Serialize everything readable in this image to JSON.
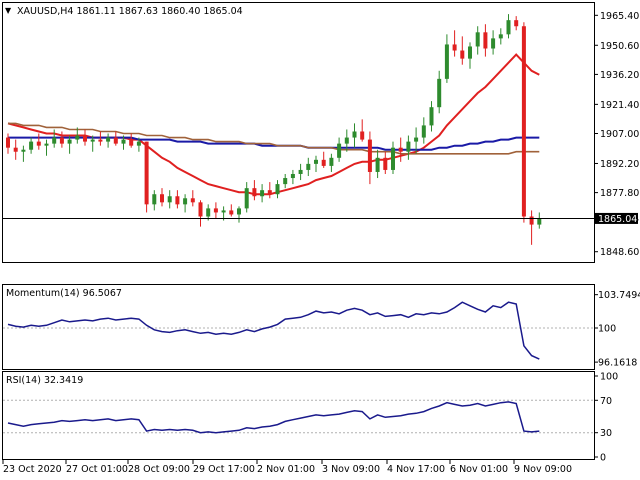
{
  "main_panel": {
    "title": "XAUUSD,H4  1861.11 1867.63 1860.40 1865.04",
    "price_ticks": [
      "1965.40",
      "1950.60",
      "1936.20",
      "1921.40",
      "1907.00",
      "1892.20",
      "1877.80",
      "1865.04",
      "1848.60"
    ],
    "last_price_label": "1865.04"
  },
  "momentum_panel": {
    "title": "Momentum(14) 96.5067",
    "ticks": [
      "103.7494",
      "100",
      "96.1618"
    ]
  },
  "rsi_panel": {
    "title": "RSI(14) 32.3419",
    "ticks": [
      "100",
      "70",
      "30",
      "0"
    ]
  },
  "time_axis": {
    "labels": [
      "23 Oct 2020",
      "27 Oct 01:00",
      "28 Oct 09:00",
      "29 Oct 17:00",
      "2 Nov 01:00",
      "3 Nov 09:00",
      "4 Nov 17:00",
      "6 Nov 01:00",
      "9 Nov 09:00"
    ]
  },
  "colors": {
    "bull_candle": "#2e8b2e",
    "bear_candle": "#e02020",
    "ma_fast": "#e02020",
    "ma_mid": "#1a1aa6",
    "ma_slow": "#a0623a",
    "indicator_line": "#1a1a8c",
    "grid": "#b0b0b0"
  },
  "chart_data": [
    {
      "type": "candlestick",
      "title": "XAUUSD,H4",
      "x_labels": [
        "23 Oct 2020",
        "27 Oct 01:00",
        "28 Oct 09:00",
        "29 Oct 17:00",
        "2 Nov 01:00",
        "3 Nov 09:00",
        "4 Nov 17:00",
        "6 Nov 01:00",
        "9 Nov 09:00"
      ],
      "ylim": [
        1845,
        1970
      ],
      "last_price": 1865.04,
      "candles": [
        [
          1905,
          1907,
          1897,
          1900
        ],
        [
          1900,
          1904,
          1894,
          1898
        ],
        [
          1898,
          1901,
          1893,
          1899
        ],
        [
          1899,
          1905,
          1897,
          1903
        ],
        [
          1903,
          1907,
          1899,
          1901
        ],
        [
          1901,
          1904,
          1896,
          1902
        ],
        [
          1902,
          1909,
          1900,
          1905
        ],
        [
          1905,
          1908,
          1900,
          1902
        ],
        [
          1902,
          1906,
          1897,
          1904
        ],
        [
          1904,
          1910,
          1902,
          1906
        ],
        [
          1906,
          1909,
          1901,
          1903
        ],
        [
          1903,
          1906,
          1898,
          1904
        ],
        [
          1904,
          1908,
          1901,
          1903
        ],
        [
          1903,
          1907,
          1900,
          1905
        ],
        [
          1905,
          1908,
          1901,
          1902
        ],
        [
          1902,
          1906,
          1899,
          1904
        ],
        [
          1904,
          1907,
          1900,
          1901
        ],
        [
          1901,
          1905,
          1898,
          1903
        ],
        [
          1903,
          1903,
          1868,
          1872
        ],
        [
          1872,
          1879,
          1869,
          1877
        ],
        [
          1877,
          1880,
          1871,
          1873
        ],
        [
          1873,
          1879,
          1870,
          1876
        ],
        [
          1876,
          1879,
          1870,
          1872
        ],
        [
          1872,
          1877,
          1868,
          1875
        ],
        [
          1875,
          1879,
          1871,
          1873
        ],
        [
          1873,
          1874,
          1861,
          1866
        ],
        [
          1866,
          1872,
          1864,
          1870
        ],
        [
          1870,
          1873,
          1865,
          1868
        ],
        [
          1868,
          1871,
          1864,
          1869
        ],
        [
          1869,
          1872,
          1866,
          1867
        ],
        [
          1867,
          1871,
          1863,
          1870
        ],
        [
          1870,
          1883,
          1868,
          1880
        ],
        [
          1880,
          1884,
          1874,
          1876
        ],
        [
          1876,
          1882,
          1873,
          1879
        ],
        [
          1879,
          1883,
          1875,
          1877
        ],
        [
          1877,
          1884,
          1875,
          1882
        ],
        [
          1882,
          1887,
          1880,
          1885
        ],
        [
          1885,
          1889,
          1882,
          1887
        ],
        [
          1887,
          1892,
          1884,
          1889
        ],
        [
          1889,
          1895,
          1886,
          1892
        ],
        [
          1892,
          1896,
          1888,
          1894
        ],
        [
          1894,
          1898,
          1890,
          1891
        ],
        [
          1891,
          1897,
          1888,
          1895
        ],
        [
          1895,
          1905,
          1893,
          1902
        ],
        [
          1902,
          1909,
          1898,
          1905
        ],
        [
          1905,
          1912,
          1900,
          1908
        ],
        [
          1908,
          1914,
          1903,
          1904
        ],
        [
          1904,
          1908,
          1882,
          1888
        ],
        [
          1888,
          1899,
          1885,
          1895
        ],
        [
          1895,
          1898,
          1887,
          1889
        ],
        [
          1889,
          1903,
          1887,
          1900
        ],
        [
          1900,
          1905,
          1893,
          1898
        ],
        [
          1898,
          1906,
          1894,
          1903
        ],
        [
          1903,
          1910,
          1897,
          1905
        ],
        [
          1905,
          1915,
          1902,
          1911
        ],
        [
          1911,
          1923,
          1908,
          1920
        ],
        [
          1920,
          1938,
          1917,
          1934
        ],
        [
          1934,
          1956,
          1932,
          1951
        ],
        [
          1951,
          1958,
          1945,
          1948
        ],
        [
          1948,
          1955,
          1941,
          1944
        ],
        [
          1944,
          1952,
          1939,
          1950
        ],
        [
          1950,
          1960,
          1946,
          1957
        ],
        [
          1957,
          1961,
          1945,
          1949
        ],
        [
          1949,
          1958,
          1946,
          1954
        ],
        [
          1954,
          1959,
          1951,
          1956
        ],
        [
          1956,
          1966,
          1954,
          1963
        ],
        [
          1963,
          1965,
          1958,
          1960
        ],
        [
          1960,
          1962,
          1863,
          1866
        ],
        [
          1866,
          1869,
          1852,
          1862
        ],
        [
          1862,
          1868,
          1860,
          1865
        ]
      ],
      "moving_averages": [
        {
          "color": "ma_fast",
          "values": [
            1912,
            1911,
            1910,
            1909,
            1908,
            1907,
            1907,
            1906,
            1906,
            1906,
            1906,
            1905,
            1905,
            1905,
            1905,
            1905,
            1904,
            1904,
            1901,
            1898,
            1895,
            1893,
            1890,
            1888,
            1886,
            1884,
            1882,
            1881,
            1880,
            1879,
            1878,
            1878,
            1877,
            1877,
            1877,
            1878,
            1879,
            1880,
            1881,
            1882,
            1884,
            1885,
            1886,
            1888,
            1890,
            1892,
            1893,
            1893,
            1894,
            1894,
            1895,
            1896,
            1897,
            1898,
            1900,
            1903,
            1906,
            1911,
            1915,
            1919,
            1923,
            1927,
            1930,
            1934,
            1938,
            1942,
            1946,
            1942,
            1938,
            1936
          ]
        },
        {
          "color": "ma_mid",
          "values": [
            1905,
            1905,
            1905,
            1905,
            1905,
            1905,
            1905,
            1905,
            1905,
            1905,
            1905,
            1905,
            1905,
            1905,
            1905,
            1905,
            1905,
            1904,
            1904,
            1904,
            1904,
            1904,
            1903,
            1903,
            1903,
            1903,
            1902,
            1902,
            1902,
            1902,
            1902,
            1902,
            1902,
            1901,
            1901,
            1901,
            1901,
            1901,
            1901,
            1900,
            1900,
            1900,
            1900,
            1900,
            1900,
            1900,
            1900,
            1900,
            1900,
            1899,
            1899,
            1899,
            1899,
            1899,
            1899,
            1899,
            1900,
            1900,
            1901,
            1901,
            1902,
            1902,
            1903,
            1903,
            1904,
            1904,
            1905,
            1905,
            1905,
            1905
          ]
        },
        {
          "color": "ma_slow",
          "values": [
            1912,
            1912,
            1911,
            1911,
            1911,
            1910,
            1910,
            1910,
            1909,
            1909,
            1909,
            1909,
            1908,
            1908,
            1908,
            1907,
            1907,
            1907,
            1906,
            1906,
            1906,
            1905,
            1905,
            1905,
            1904,
            1904,
            1904,
            1903,
            1903,
            1903,
            1903,
            1902,
            1902,
            1902,
            1902,
            1901,
            1901,
            1901,
            1901,
            1900,
            1900,
            1900,
            1900,
            1899,
            1899,
            1899,
            1899,
            1898,
            1898,
            1898,
            1898,
            1897,
            1897,
            1897,
            1897,
            1897,
            1897,
            1897,
            1897,
            1897,
            1897,
            1897,
            1897,
            1897,
            1897,
            1897,
            1898,
            1898,
            1898,
            1898
          ]
        }
      ]
    },
    {
      "type": "line",
      "title": "Momentum(14)",
      "ylim": [
        95.5,
        104.5
      ],
      "levels": [
        100
      ],
      "values": [
        100.4,
        100.2,
        100.1,
        100.3,
        100.2,
        100.3,
        100.6,
        100.9,
        100.7,
        100.8,
        100.9,
        100.8,
        101.0,
        101.1,
        100.9,
        101.0,
        101.1,
        101.0,
        100.3,
        99.8,
        99.6,
        99.5,
        99.7,
        99.8,
        99.6,
        99.4,
        99.5,
        99.3,
        99.4,
        99.3,
        99.5,
        99.8,
        99.6,
        99.9,
        100.1,
        100.4,
        101.0,
        101.1,
        101.2,
        101.5,
        101.9,
        101.7,
        101.8,
        101.6,
        102.0,
        102.2,
        102.0,
        101.5,
        101.7,
        101.3,
        101.4,
        101.5,
        101.2,
        101.6,
        101.5,
        101.7,
        101.6,
        101.8,
        102.3,
        102.9,
        102.5,
        102.1,
        101.8,
        102.5,
        102.3,
        102.9,
        102.7,
        98.0,
        96.9,
        96.5
      ]
    },
    {
      "type": "line",
      "title": "RSI(14)",
      "ylim": [
        0,
        100
      ],
      "levels": [
        70,
        30
      ],
      "values": [
        42,
        40,
        38,
        40,
        41,
        42,
        43,
        45,
        44,
        45,
        46,
        45,
        46,
        47,
        45,
        46,
        47,
        46,
        32,
        34,
        33,
        34,
        33,
        34,
        33,
        30,
        31,
        30,
        31,
        32,
        33,
        36,
        35,
        37,
        38,
        40,
        44,
        46,
        48,
        50,
        52,
        51,
        52,
        53,
        55,
        57,
        56,
        47,
        52,
        49,
        50,
        51,
        53,
        54,
        56,
        60,
        63,
        67,
        65,
        63,
        64,
        66,
        63,
        65,
        67,
        68,
        66,
        32,
        31,
        32
      ]
    }
  ]
}
